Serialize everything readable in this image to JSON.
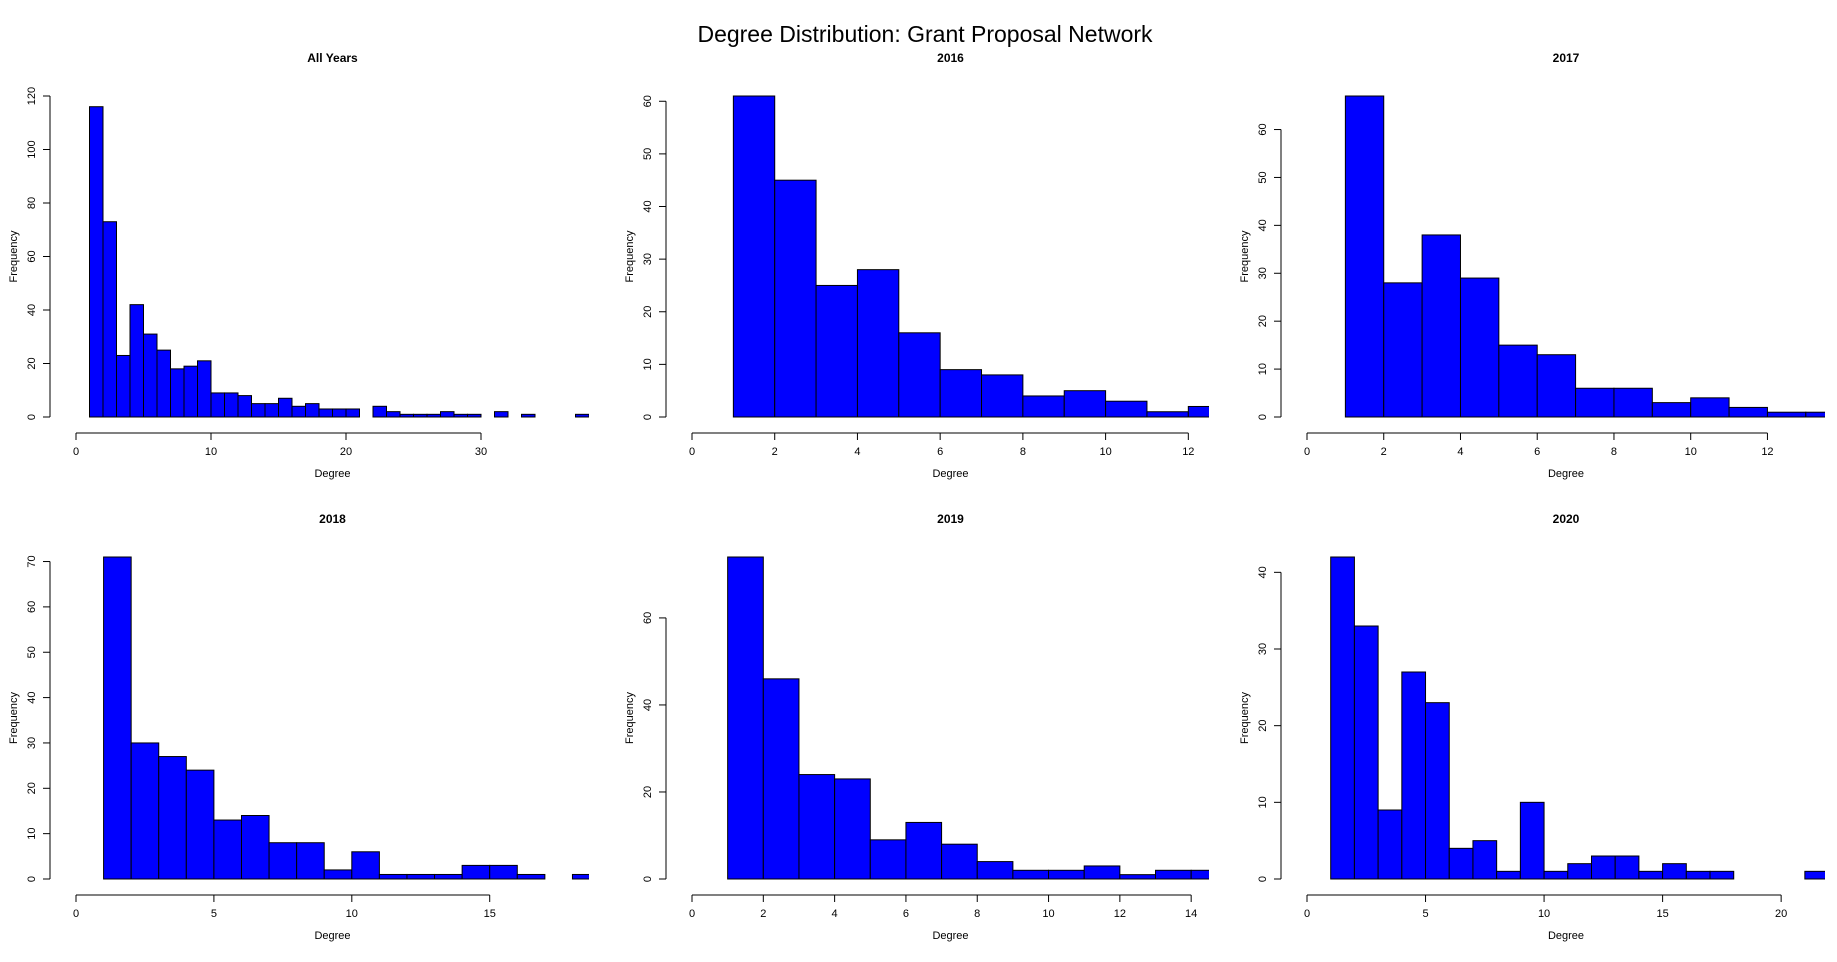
{
  "title": "Degree Distribution: Grant Proposal Network",
  "chart_data": [
    {
      "type": "histogram",
      "title": "All Years",
      "xlabel": "Degree",
      "ylabel": "Frequency",
      "color": "#0000ff",
      "bins": [
        1,
        2,
        3,
        4,
        5,
        6,
        7,
        8,
        9,
        10,
        11,
        12,
        13,
        14,
        15,
        16,
        17,
        18,
        19,
        20,
        21,
        22,
        23,
        24,
        25,
        26,
        27,
        28,
        29,
        30,
        31,
        32,
        33,
        34,
        35,
        36,
        37,
        38
      ],
      "values": [
        116,
        73,
        23,
        42,
        31,
        25,
        18,
        19,
        21,
        9,
        9,
        8,
        5,
        5,
        7,
        4,
        5,
        3,
        3,
        3,
        0,
        4,
        2,
        1,
        1,
        1,
        2,
        1,
        1,
        0,
        2,
        0,
        1,
        0,
        0,
        0,
        1
      ],
      "xlim": [
        0,
        38
      ],
      "ylim": [
        0,
        120
      ],
      "xticks": [
        0,
        10,
        20,
        30
      ],
      "yticks": [
        0,
        20,
        40,
        60,
        80,
        100,
        120
      ]
    },
    {
      "type": "histogram",
      "title": "2016",
      "xlabel": "Degree",
      "ylabel": "Frequency",
      "color": "#0000ff",
      "bins": [
        1,
        2,
        3,
        4,
        5,
        6,
        7,
        8,
        9,
        10,
        11,
        12,
        13
      ],
      "values": [
        61,
        45,
        25,
        28,
        16,
        9,
        8,
        4,
        5,
        3,
        1,
        2
      ],
      "xlim": [
        0,
        12.5
      ],
      "ylim": [
        0,
        61
      ],
      "xticks": [
        0,
        2,
        4,
        6,
        8,
        10,
        12
      ],
      "yticks": [
        0,
        10,
        20,
        30,
        40,
        50,
        60
      ]
    },
    {
      "type": "histogram",
      "title": "2017",
      "xlabel": "Degree",
      "ylabel": "Frequency",
      "color": "#0000ff",
      "bins": [
        1,
        2,
        3,
        4,
        5,
        6,
        7,
        8,
        9,
        10,
        11,
        12,
        13,
        14
      ],
      "values": [
        67,
        28,
        38,
        29,
        15,
        13,
        6,
        6,
        3,
        4,
        2,
        1,
        1
      ],
      "xlim": [
        0,
        13.5
      ],
      "ylim": [
        0,
        67
      ],
      "xticks": [
        0,
        2,
        4,
        6,
        8,
        10,
        12
      ],
      "yticks": [
        0,
        10,
        20,
        30,
        40,
        50,
        60
      ]
    },
    {
      "type": "histogram",
      "title": "2018",
      "xlabel": "Degree",
      "ylabel": "Frequency",
      "color": "#0000ff",
      "bins": [
        1,
        2,
        3,
        4,
        5,
        6,
        7,
        8,
        9,
        10,
        11,
        12,
        13,
        14,
        15,
        16,
        17,
        18,
        19
      ],
      "values": [
        71,
        30,
        27,
        24,
        13,
        14,
        8,
        8,
        2,
        6,
        1,
        1,
        1,
        3,
        3,
        1,
        0,
        1
      ],
      "xlim": [
        0,
        18.6
      ],
      "ylim": [
        0,
        71
      ],
      "xticks": [
        0,
        5,
        10,
        15
      ],
      "yticks": [
        0,
        10,
        20,
        30,
        40,
        50,
        60,
        70
      ]
    },
    {
      "type": "histogram",
      "title": "2019",
      "xlabel": "Degree",
      "ylabel": "Frequency",
      "color": "#0000ff",
      "bins": [
        1,
        2,
        3,
        4,
        5,
        6,
        7,
        8,
        9,
        10,
        11,
        12,
        13,
        14,
        15
      ],
      "values": [
        74,
        46,
        24,
        23,
        9,
        13,
        8,
        4,
        2,
        2,
        3,
        1,
        2,
        2
      ],
      "xlim": [
        0,
        14.5
      ],
      "ylim": [
        0,
        74
      ],
      "xticks": [
        0,
        2,
        4,
        6,
        8,
        10,
        12,
        14
      ],
      "yticks": [
        0,
        20,
        40,
        60
      ]
    },
    {
      "type": "histogram",
      "title": "2020",
      "xlabel": "Degree",
      "ylabel": "Frequency",
      "color": "#0000ff",
      "bins": [
        1,
        2,
        3,
        4,
        5,
        6,
        7,
        8,
        9,
        10,
        11,
        12,
        13,
        14,
        15,
        16,
        17,
        18,
        19,
        20,
        21,
        22
      ],
      "values": [
        42,
        33,
        9,
        27,
        23,
        4,
        5,
        1,
        10,
        1,
        2,
        3,
        3,
        1,
        2,
        1,
        1,
        0,
        0,
        0,
        1
      ],
      "xlim": [
        0,
        21.85
      ],
      "ylim": [
        0,
        42
      ],
      "xticks": [
        0,
        5,
        10,
        15,
        20
      ],
      "yticks": [
        0,
        10,
        20,
        30,
        40
      ]
    }
  ]
}
